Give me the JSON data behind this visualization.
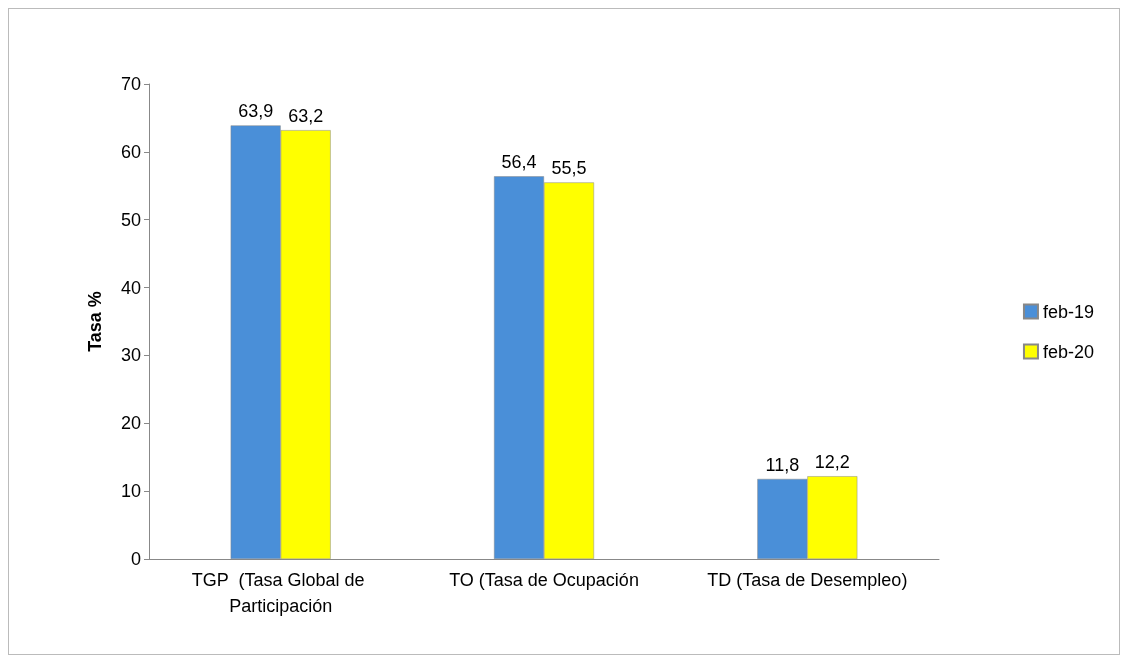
{
  "chart_data": {
    "type": "bar",
    "ylabel": "Tasa %",
    "categories": [
      "TGP  (Tasa Global de Participación",
      "TO (Tasa de Ocupación",
      "TD (Tasa de Desempleo)"
    ],
    "series": [
      {
        "name": "feb-19",
        "color": "#4a8fd8",
        "values": [
          63.9,
          56.4,
          11.8
        ],
        "value_labels": [
          "63,9",
          "56,4",
          "11,8"
        ]
      },
      {
        "name": "feb-20",
        "color": "#ffff00",
        "values": [
          63.2,
          55.5,
          12.2
        ],
        "value_labels": [
          "63,2",
          "55,5",
          "12,2"
        ]
      }
    ],
    "ylim": [
      0,
      70
    ],
    "yticks": [
      0,
      10,
      20,
      30,
      40,
      50,
      60,
      70
    ],
    "grid": false,
    "legend": "right"
  }
}
